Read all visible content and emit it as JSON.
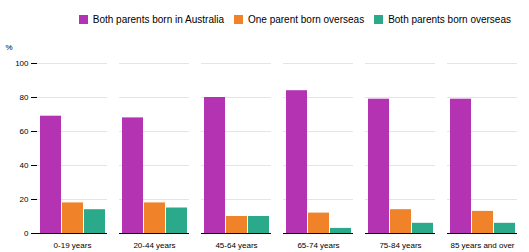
{
  "chart_data": {
    "type": "bar",
    "categories": [
      "0-19 years",
      "20-44 years",
      "45-64 years",
      "65-74 years",
      "75-84 years",
      "85 years and over"
    ],
    "series": [
      {
        "name": "Both parents born in Australia",
        "color": "#b333b3",
        "values": [
          69,
          68,
          80,
          84,
          79,
          79
        ]
      },
      {
        "name": "One parent born overseas",
        "color": "#f0832a",
        "values": [
          18,
          18,
          10,
          12,
          14,
          13
        ]
      },
      {
        "name": "Both parents born overseas",
        "color": "#2aaa8a",
        "values": [
          14,
          15,
          10,
          3,
          6,
          6
        ]
      }
    ],
    "ylabel": "%",
    "ylim": [
      0,
      100
    ],
    "yticks": [
      0,
      20,
      40,
      60,
      80,
      100
    ],
    "grid": true,
    "legend": "upper right"
  }
}
